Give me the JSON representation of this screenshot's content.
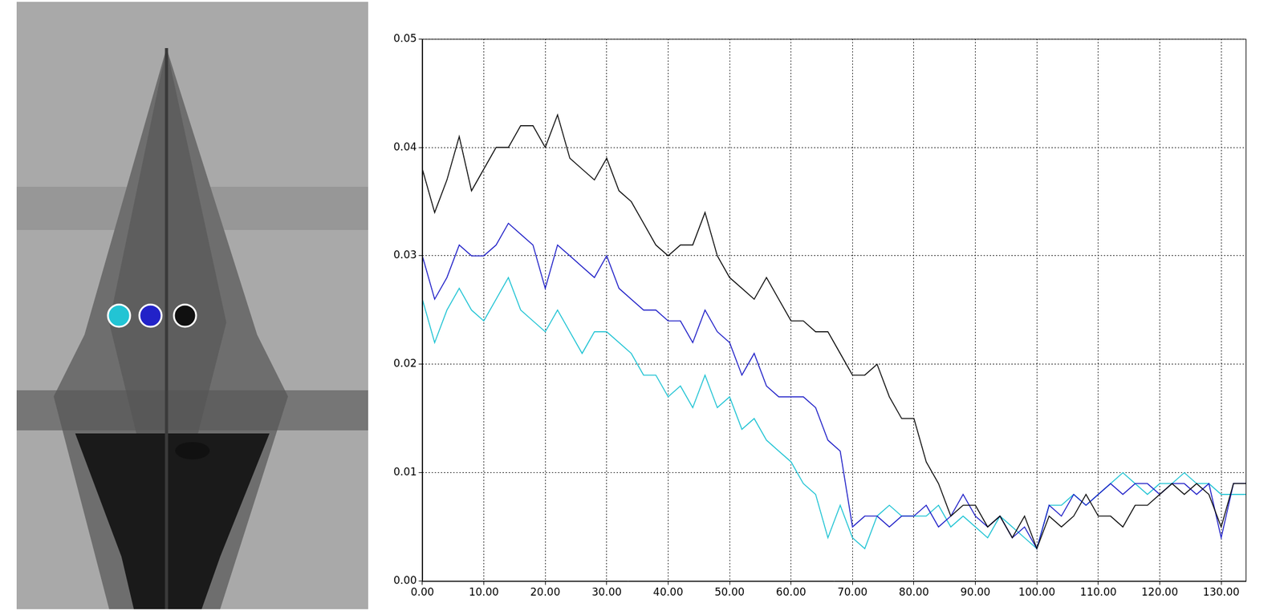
{
  "chart_data": {
    "type": "line",
    "x": [
      0,
      2,
      4,
      6,
      8,
      10,
      12,
      14,
      16,
      18,
      20,
      22,
      24,
      26,
      28,
      30,
      32,
      34,
      36,
      38,
      40,
      42,
      44,
      46,
      48,
      50,
      52,
      54,
      56,
      58,
      60,
      62,
      64,
      66,
      68,
      70,
      72,
      74,
      76,
      78,
      80,
      82,
      84,
      86,
      88,
      90,
      92,
      94,
      96,
      98,
      100,
      102,
      104,
      106,
      108,
      110,
      112,
      114,
      116,
      118,
      120,
      122,
      124,
      126,
      128,
      130,
      132,
      134
    ],
    "series": [
      {
        "color": "#101010",
        "values": [
          0.038,
          0.034,
          0.037,
          0.041,
          0.036,
          0.038,
          0.04,
          0.04,
          0.042,
          0.042,
          0.04,
          0.043,
          0.039,
          0.038,
          0.037,
          0.039,
          0.036,
          0.035,
          0.033,
          0.031,
          0.03,
          0.031,
          0.031,
          0.034,
          0.03,
          0.028,
          0.027,
          0.026,
          0.028,
          0.026,
          0.024,
          0.024,
          0.023,
          0.023,
          0.021,
          0.019,
          0.019,
          0.02,
          0.017,
          0.015,
          0.015,
          0.011,
          0.009,
          0.006,
          0.007,
          0.007,
          0.005,
          0.006,
          0.004,
          0.006,
          0.003,
          0.006,
          0.005,
          0.006,
          0.008,
          0.006,
          0.006,
          0.005,
          0.007,
          0.007,
          0.008,
          0.009,
          0.008,
          0.009,
          0.008,
          0.005,
          0.009,
          0.009
        ]
      },
      {
        "color": "#2222c8",
        "values": [
          0.03,
          0.026,
          0.028,
          0.031,
          0.03,
          0.03,
          0.031,
          0.033,
          0.032,
          0.031,
          0.027,
          0.031,
          0.03,
          0.029,
          0.028,
          0.03,
          0.027,
          0.026,
          0.025,
          0.025,
          0.024,
          0.024,
          0.022,
          0.025,
          0.023,
          0.022,
          0.019,
          0.021,
          0.018,
          0.017,
          0.017,
          0.017,
          0.016,
          0.013,
          0.012,
          0.005,
          0.006,
          0.006,
          0.005,
          0.006,
          0.006,
          0.007,
          0.005,
          0.006,
          0.008,
          0.006,
          0.005,
          0.006,
          0.004,
          0.005,
          0.003,
          0.007,
          0.006,
          0.008,
          0.007,
          0.008,
          0.009,
          0.008,
          0.009,
          0.009,
          0.008,
          0.009,
          0.009,
          0.008,
          0.009,
          0.004,
          0.009,
          0.009
        ]
      },
      {
        "color": "#22c4d4",
        "values": [
          0.026,
          0.022,
          0.025,
          0.027,
          0.025,
          0.024,
          0.026,
          0.028,
          0.025,
          0.024,
          0.023,
          0.025,
          0.023,
          0.021,
          0.023,
          0.023,
          0.022,
          0.021,
          0.019,
          0.019,
          0.017,
          0.018,
          0.016,
          0.019,
          0.016,
          0.017,
          0.014,
          0.015,
          0.013,
          0.012,
          0.011,
          0.009,
          0.008,
          0.004,
          0.007,
          0.004,
          0.003,
          0.006,
          0.007,
          0.006,
          0.006,
          0.006,
          0.007,
          0.005,
          0.006,
          0.005,
          0.004,
          0.006,
          0.005,
          0.004,
          0.003,
          0.007,
          0.007,
          0.008,
          0.007,
          0.008,
          0.009,
          0.01,
          0.009,
          0.008,
          0.009,
          0.009,
          0.01,
          0.009,
          0.009,
          0.008,
          0.008,
          0.008
        ]
      }
    ],
    "xlim": [
      0,
      134
    ],
    "xticks": [
      {
        "value": 0,
        "label": "0.00"
      },
      {
        "value": 10,
        "label": "10.00"
      },
      {
        "value": 20,
        "label": "20.00"
      },
      {
        "value": 30,
        "label": "30.00"
      },
      {
        "value": 40,
        "label": "40.00"
      },
      {
        "value": 50,
        "label": "50.00"
      },
      {
        "value": 60,
        "label": "60.00"
      },
      {
        "value": 70,
        "label": "70.00"
      },
      {
        "value": 80,
        "label": "80.00"
      },
      {
        "value": 90,
        "label": "90.00"
      },
      {
        "value": 100,
        "label": "100.00"
      },
      {
        "value": 110,
        "label": "110.00"
      },
      {
        "value": 120,
        "label": "120.00"
      },
      {
        "value": 130,
        "label": "130.00"
      }
    ],
    "ylim": [
      0,
      0.05
    ],
    "yticks": [
      {
        "value": 0,
        "label": "0.00"
      },
      0.01,
      0.02,
      0.03,
      0.04,
      0.05
    ],
    "grid": true
  }
}
